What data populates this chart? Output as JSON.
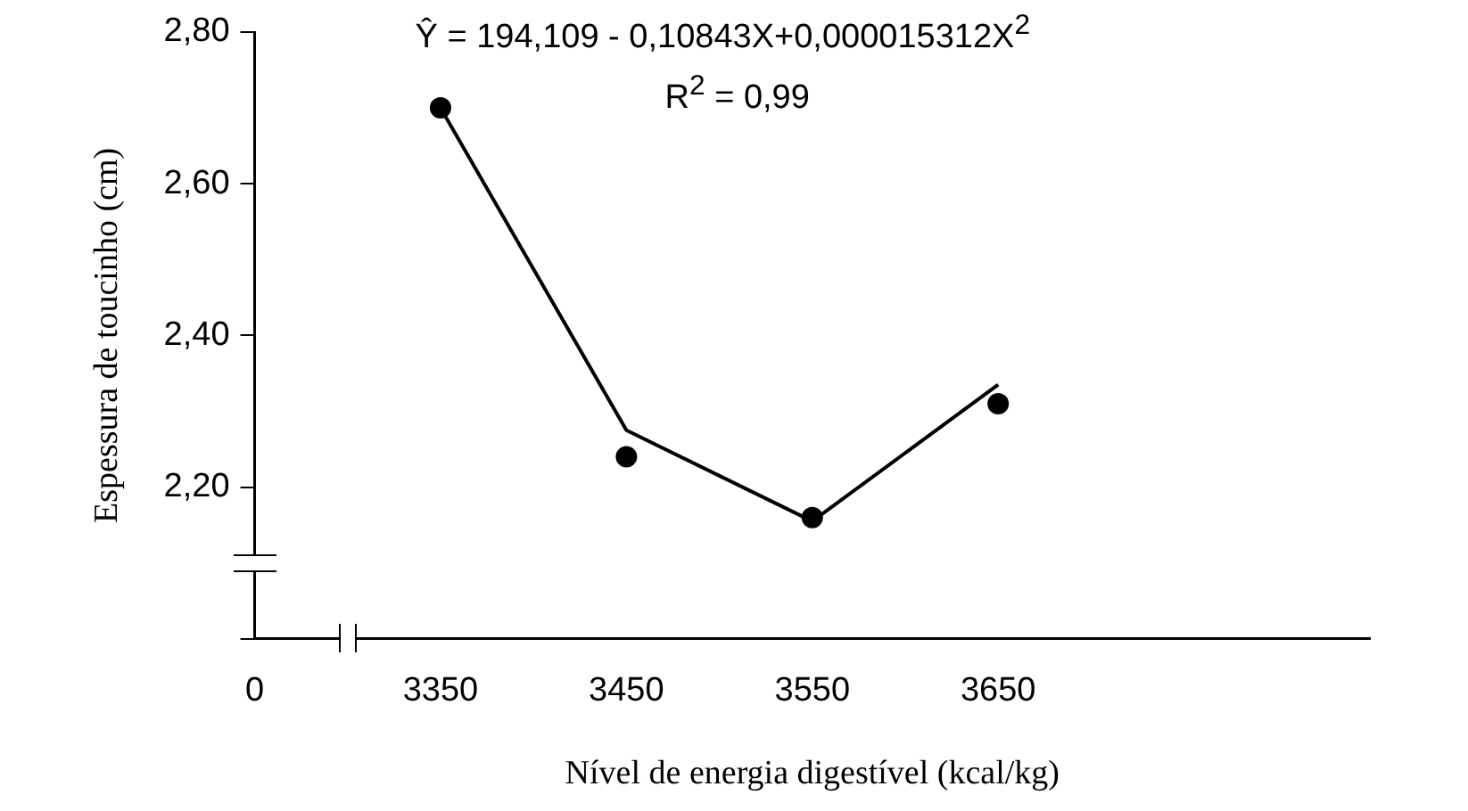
{
  "chart_data": {
    "type": "scatter",
    "xlabel": "Nível de energia digestível (kcal/kg)",
    "ylabel": "Espessura de toucinho (cm)",
    "categories": [
      "0",
      "3350",
      "3450",
      "3550",
      "3650",
      null,
      null
    ],
    "series": [
      {
        "color": "#000000",
        "marker": "circle",
        "values": [
          null,
          2.7,
          2.24,
          2.16,
          2.31,
          null,
          null
        ]
      },
      {
        "type": "line",
        "color": "#000000",
        "marker": "none",
        "line_style": "solid",
        "values": [
          null,
          2.7,
          2.275,
          2.155,
          2.335,
          null,
          null
        ]
      }
    ],
    "ylim": [
      2.0,
      2.8
    ],
    "yticks": [
      {
        "value": 2.0,
        "label": null
      },
      {
        "value": 2.2,
        "label": "2,20"
      },
      {
        "value": 2.4,
        "label": "2,40"
      },
      {
        "value": 2.6,
        "label": "2,60"
      },
      {
        "value": 2.8,
        "label": "2,80"
      }
    ],
    "grid": false,
    "legend": false,
    "annotations": [
      "Ŷ = 194,109 - 0,10843X+0,000015312X$^{2}$",
      "R$^{2}$ = 0,99"
    ]
  }
}
